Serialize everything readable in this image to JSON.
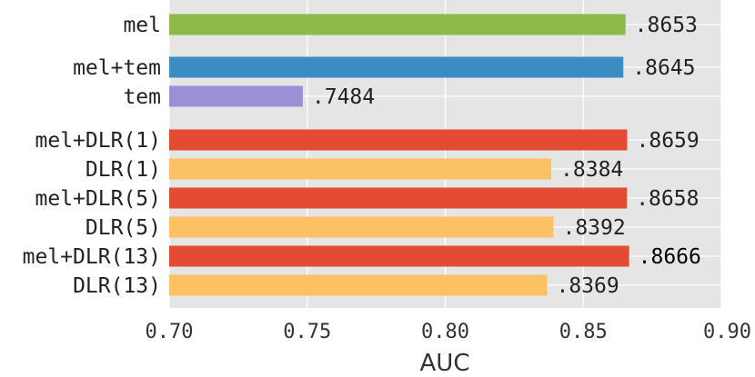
{
  "chart_data": {
    "type": "bar",
    "orientation": "horizontal",
    "title": "",
    "xlabel": "AUC",
    "ylabel": "",
    "xlim": [
      0.7,
      0.9
    ],
    "xticks": [
      "0.70",
      "0.75",
      "0.80",
      "0.85",
      "0.90"
    ],
    "grid": true,
    "legend": "none",
    "categories": [
      "mel",
      "mel+tem",
      "tem",
      "mel+DLR(1)",
      "DLR(1)",
      "mel+DLR(5)",
      "DLR(5)",
      "mel+DLR(13)",
      "DLR(13)"
    ],
    "values": [
      0.8653,
      0.8645,
      0.7484,
      0.8659,
      0.8384,
      0.8658,
      0.8392,
      0.8666,
      0.8369
    ],
    "value_labels": [
      ".8653",
      ".8645",
      ".7484",
      ".8659",
      ".8384",
      ".8658",
      ".8392",
      ".8666",
      ".8369"
    ],
    "colors": [
      "#8cbb47",
      "#3b8cc2",
      "#9b8fd6",
      "#e34c33",
      "#fbc162",
      "#e34c33",
      "#fbc162",
      "#e34c33",
      "#fbc162"
    ],
    "highlight_index": 7
  }
}
